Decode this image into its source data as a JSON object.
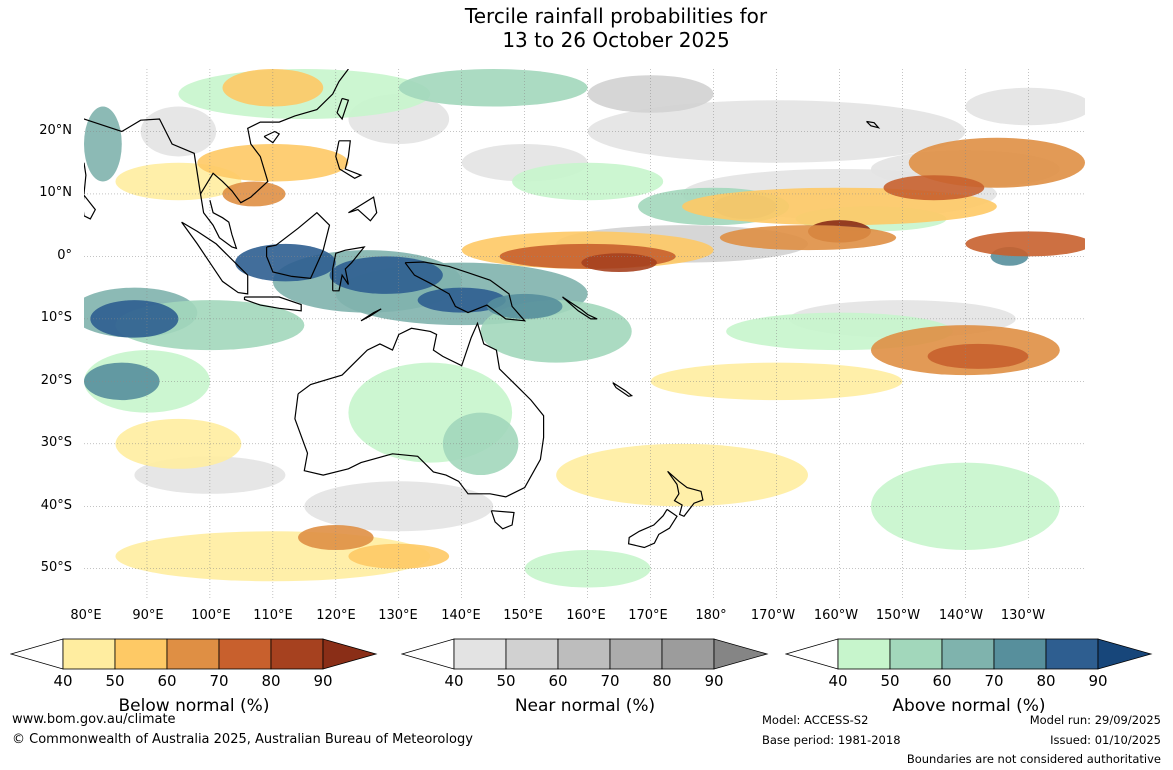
{
  "title_line1": "Tercile rainfall probabilities for",
  "title_line2": "13 to 26 October 2025",
  "map": {
    "lat_labels": [
      "20°N",
      "10°N",
      "0°",
      "10°S",
      "20°S",
      "30°S",
      "40°S",
      "50°S"
    ],
    "lon_labels": [
      "80°E",
      "90°E",
      "100°E",
      "110°E",
      "120°E",
      "130°E",
      "140°E",
      "150°E",
      "160°E",
      "170°E",
      "180°",
      "170°W",
      "160°W",
      "150°W",
      "140°W",
      "130°W"
    ],
    "extent": {
      "lon_min": 80,
      "lon_max": 239,
      "lat_min": -55,
      "lat_max": 30
    }
  },
  "legends": {
    "below": {
      "title": "Below normal (%)",
      "ticks": [
        "40",
        "50",
        "60",
        "70",
        "80",
        "90"
      ],
      "colors": [
        "#ffffff",
        "#ffeda0",
        "#fec965",
        "#df8f44",
        "#c8602d",
        "#a6411f",
        "#8a2e17"
      ]
    },
    "near": {
      "title": "Near normal (%)",
      "ticks": [
        "40",
        "50",
        "60",
        "70",
        "80",
        "90"
      ],
      "colors": [
        "#ffffff",
        "#e3e3e3",
        "#d1d1d1",
        "#bdbdbd",
        "#acacac",
        "#9c9c9c",
        "#858585"
      ]
    },
    "above": {
      "title": "Above normal (%)",
      "ticks": [
        "40",
        "50",
        "60",
        "70",
        "80",
        "90"
      ],
      "colors": [
        "#ffffff",
        "#c7f5cc",
        "#a2d7bb",
        "#7fb3ad",
        "#578f9c",
        "#2e5e90",
        "#17467a"
      ]
    }
  },
  "footer": {
    "website": "www.bom.gov.au/climate",
    "copyright": "© Commonwealth of Australia 2025, Australian Bureau of Meteorology",
    "model": "Model: ACCESS-S2",
    "base_period": "Base period: 1981-2018",
    "model_run": "Model run: 29/09/2025",
    "issued": "Issued: 01/10/2025",
    "disclaimer": "Boundaries are not considered authoritative"
  }
}
